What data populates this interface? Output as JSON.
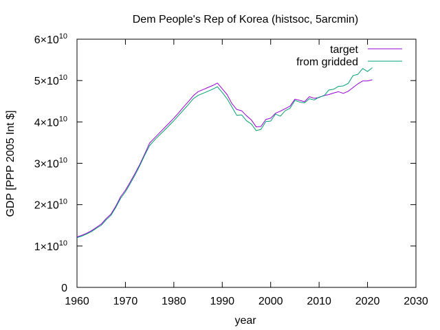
{
  "chart_data": {
    "type": "line",
    "title": "Dem People's Rep of Korea (histsoc, 5arcmin)",
    "xlabel": "year",
    "ylabel": "GDP [PPP 2005 Int $]",
    "xlim": [
      1960,
      2030
    ],
    "ylim": [
      0,
      60000000000
    ],
    "x_ticks": [
      1960,
      1970,
      1980,
      1990,
      2000,
      2010,
      2020,
      2030
    ],
    "x_tick_labels": [
      "1960",
      "1970",
      "1980",
      "1990",
      "2000",
      "2010",
      "2020",
      "2030"
    ],
    "y_ticks": [
      0,
      10000000000,
      20000000000,
      30000000000,
      40000000000,
      50000000000,
      60000000000
    ],
    "y_tick_labels": [
      {
        "mantissa": "0",
        "exp": ""
      },
      {
        "mantissa": "1×10",
        "exp": "10"
      },
      {
        "mantissa": "2×10",
        "exp": "10"
      },
      {
        "mantissa": "3×10",
        "exp": "10"
      },
      {
        "mantissa": "4×10",
        "exp": "10"
      },
      {
        "mantissa": "5×10",
        "exp": "10"
      },
      {
        "mantissa": "6×10",
        "exp": "10"
      }
    ],
    "grid": false,
    "legend_position": "top-right",
    "x": [
      1960,
      1961,
      1962,
      1963,
      1964,
      1965,
      1966,
      1967,
      1968,
      1969,
      1970,
      1971,
      1972,
      1973,
      1974,
      1975,
      1976,
      1977,
      1978,
      1979,
      1980,
      1981,
      1982,
      1983,
      1984,
      1985,
      1986,
      1987,
      1988,
      1989,
      1990,
      1991,
      1992,
      1993,
      1994,
      1995,
      1996,
      1997,
      1998,
      1999,
      2000,
      2001,
      2002,
      2003,
      2004,
      2005,
      2006,
      2007,
      2008,
      2009,
      2010,
      2011,
      2012,
      2013,
      2014,
      2015,
      2016,
      2017,
      2018,
      2019,
      2020,
      2021
    ],
    "series": [
      {
        "name": "target",
        "color": "#9400d3",
        "values": [
          12.2,
          12.6,
          13.1,
          13.7,
          14.5,
          15.3,
          16.6,
          17.7,
          19.6,
          21.9,
          23.5,
          25.5,
          27.6,
          29.8,
          32.3,
          34.9,
          36.1,
          37.3,
          38.5,
          39.7,
          40.9,
          42.2,
          43.6,
          44.9,
          46.3,
          47.3,
          47.8,
          48.3,
          48.8,
          49.4,
          48.0,
          46.6,
          44.4,
          43.0,
          42.7,
          41.5,
          40.5,
          38.8,
          38.9,
          40.6,
          40.9,
          42.1,
          42.6,
          43.2,
          43.8,
          45.5,
          45.2,
          44.9,
          46.1,
          45.7,
          45.9,
          46.4,
          46.6,
          47.0,
          47.3,
          46.9,
          47.4,
          48.3,
          49.2,
          49.9,
          49.9,
          50.2
        ]
      },
      {
        "name": "from gridded",
        "color": "#009e73",
        "values": [
          12.0,
          12.4,
          12.9,
          13.5,
          14.3,
          15.0,
          16.3,
          17.4,
          19.3,
          21.5,
          23.1,
          25.1,
          27.2,
          29.5,
          32.0,
          34.3,
          35.6,
          36.8,
          37.9,
          39.1,
          40.3,
          41.6,
          42.9,
          44.2,
          45.6,
          46.4,
          46.9,
          47.4,
          47.9,
          48.5,
          47.1,
          45.6,
          43.6,
          41.6,
          41.7,
          40.3,
          39.5,
          37.9,
          38.2,
          40.1,
          40.2,
          41.9,
          41.4,
          42.7,
          43.3,
          45.2,
          44.8,
          44.6,
          45.6,
          45.3,
          46.0,
          46.3,
          47.7,
          47.9,
          48.6,
          48.7,
          49.3,
          51.2,
          51.5,
          52.9,
          52.2,
          53.1
        ]
      }
    ],
    "values_unit_note": "series values in units of 1e9"
  }
}
